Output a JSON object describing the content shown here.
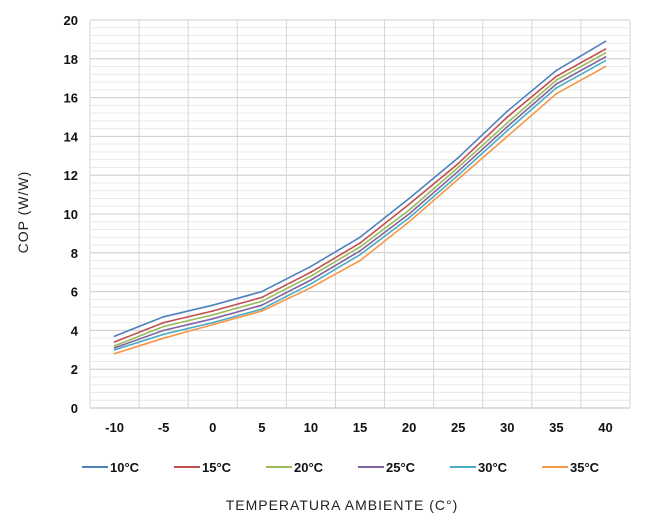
{
  "chart_data": {
    "type": "line",
    "title": "",
    "xlabel": "TEMPERATURA AMBIENTE (C°)",
    "ylabel": "COP (W/W)",
    "xlim": [
      -10,
      40
    ],
    "ylim": [
      0,
      20
    ],
    "x_ticks": [
      -10,
      -5,
      0,
      5,
      10,
      15,
      20,
      25,
      30,
      35,
      40
    ],
    "y_ticks": [
      0,
      2,
      4,
      6,
      8,
      10,
      12,
      14,
      16,
      18,
      20
    ],
    "grid": true,
    "legend_position": "bottom",
    "x": [
      -10,
      -5,
      0,
      5,
      10,
      15,
      20,
      25,
      30,
      35,
      40
    ],
    "series": [
      {
        "name": "10°C",
        "color": "#4f81bd",
        "values": [
          3.7,
          4.7,
          5.3,
          6.0,
          7.3,
          8.8,
          10.8,
          12.9,
          15.3,
          17.4,
          18.9
        ]
      },
      {
        "name": "15°C",
        "color": "#c0504d",
        "values": [
          3.4,
          4.4,
          5.0,
          5.7,
          7.0,
          8.5,
          10.5,
          12.6,
          15.0,
          17.1,
          18.5
        ]
      },
      {
        "name": "20°C",
        "color": "#9bbb59",
        "values": [
          3.2,
          4.2,
          4.8,
          5.5,
          6.8,
          8.3,
          10.2,
          12.4,
          14.7,
          16.9,
          18.3
        ]
      },
      {
        "name": "25°C",
        "color": "#8064a2",
        "values": [
          3.1,
          4.0,
          4.6,
          5.3,
          6.6,
          8.1,
          10.0,
          12.2,
          14.5,
          16.7,
          18.1
        ]
      },
      {
        "name": "30°C",
        "color": "#4bacc6",
        "values": [
          3.0,
          3.8,
          4.4,
          5.1,
          6.4,
          7.9,
          9.8,
          12.0,
          14.3,
          16.5,
          17.9
        ]
      },
      {
        "name": "35°C",
        "color": "#f79646",
        "values": [
          2.8,
          3.6,
          4.3,
          5.0,
          6.2,
          7.6,
          9.6,
          11.8,
          14.0,
          16.2,
          17.6
        ]
      }
    ]
  }
}
